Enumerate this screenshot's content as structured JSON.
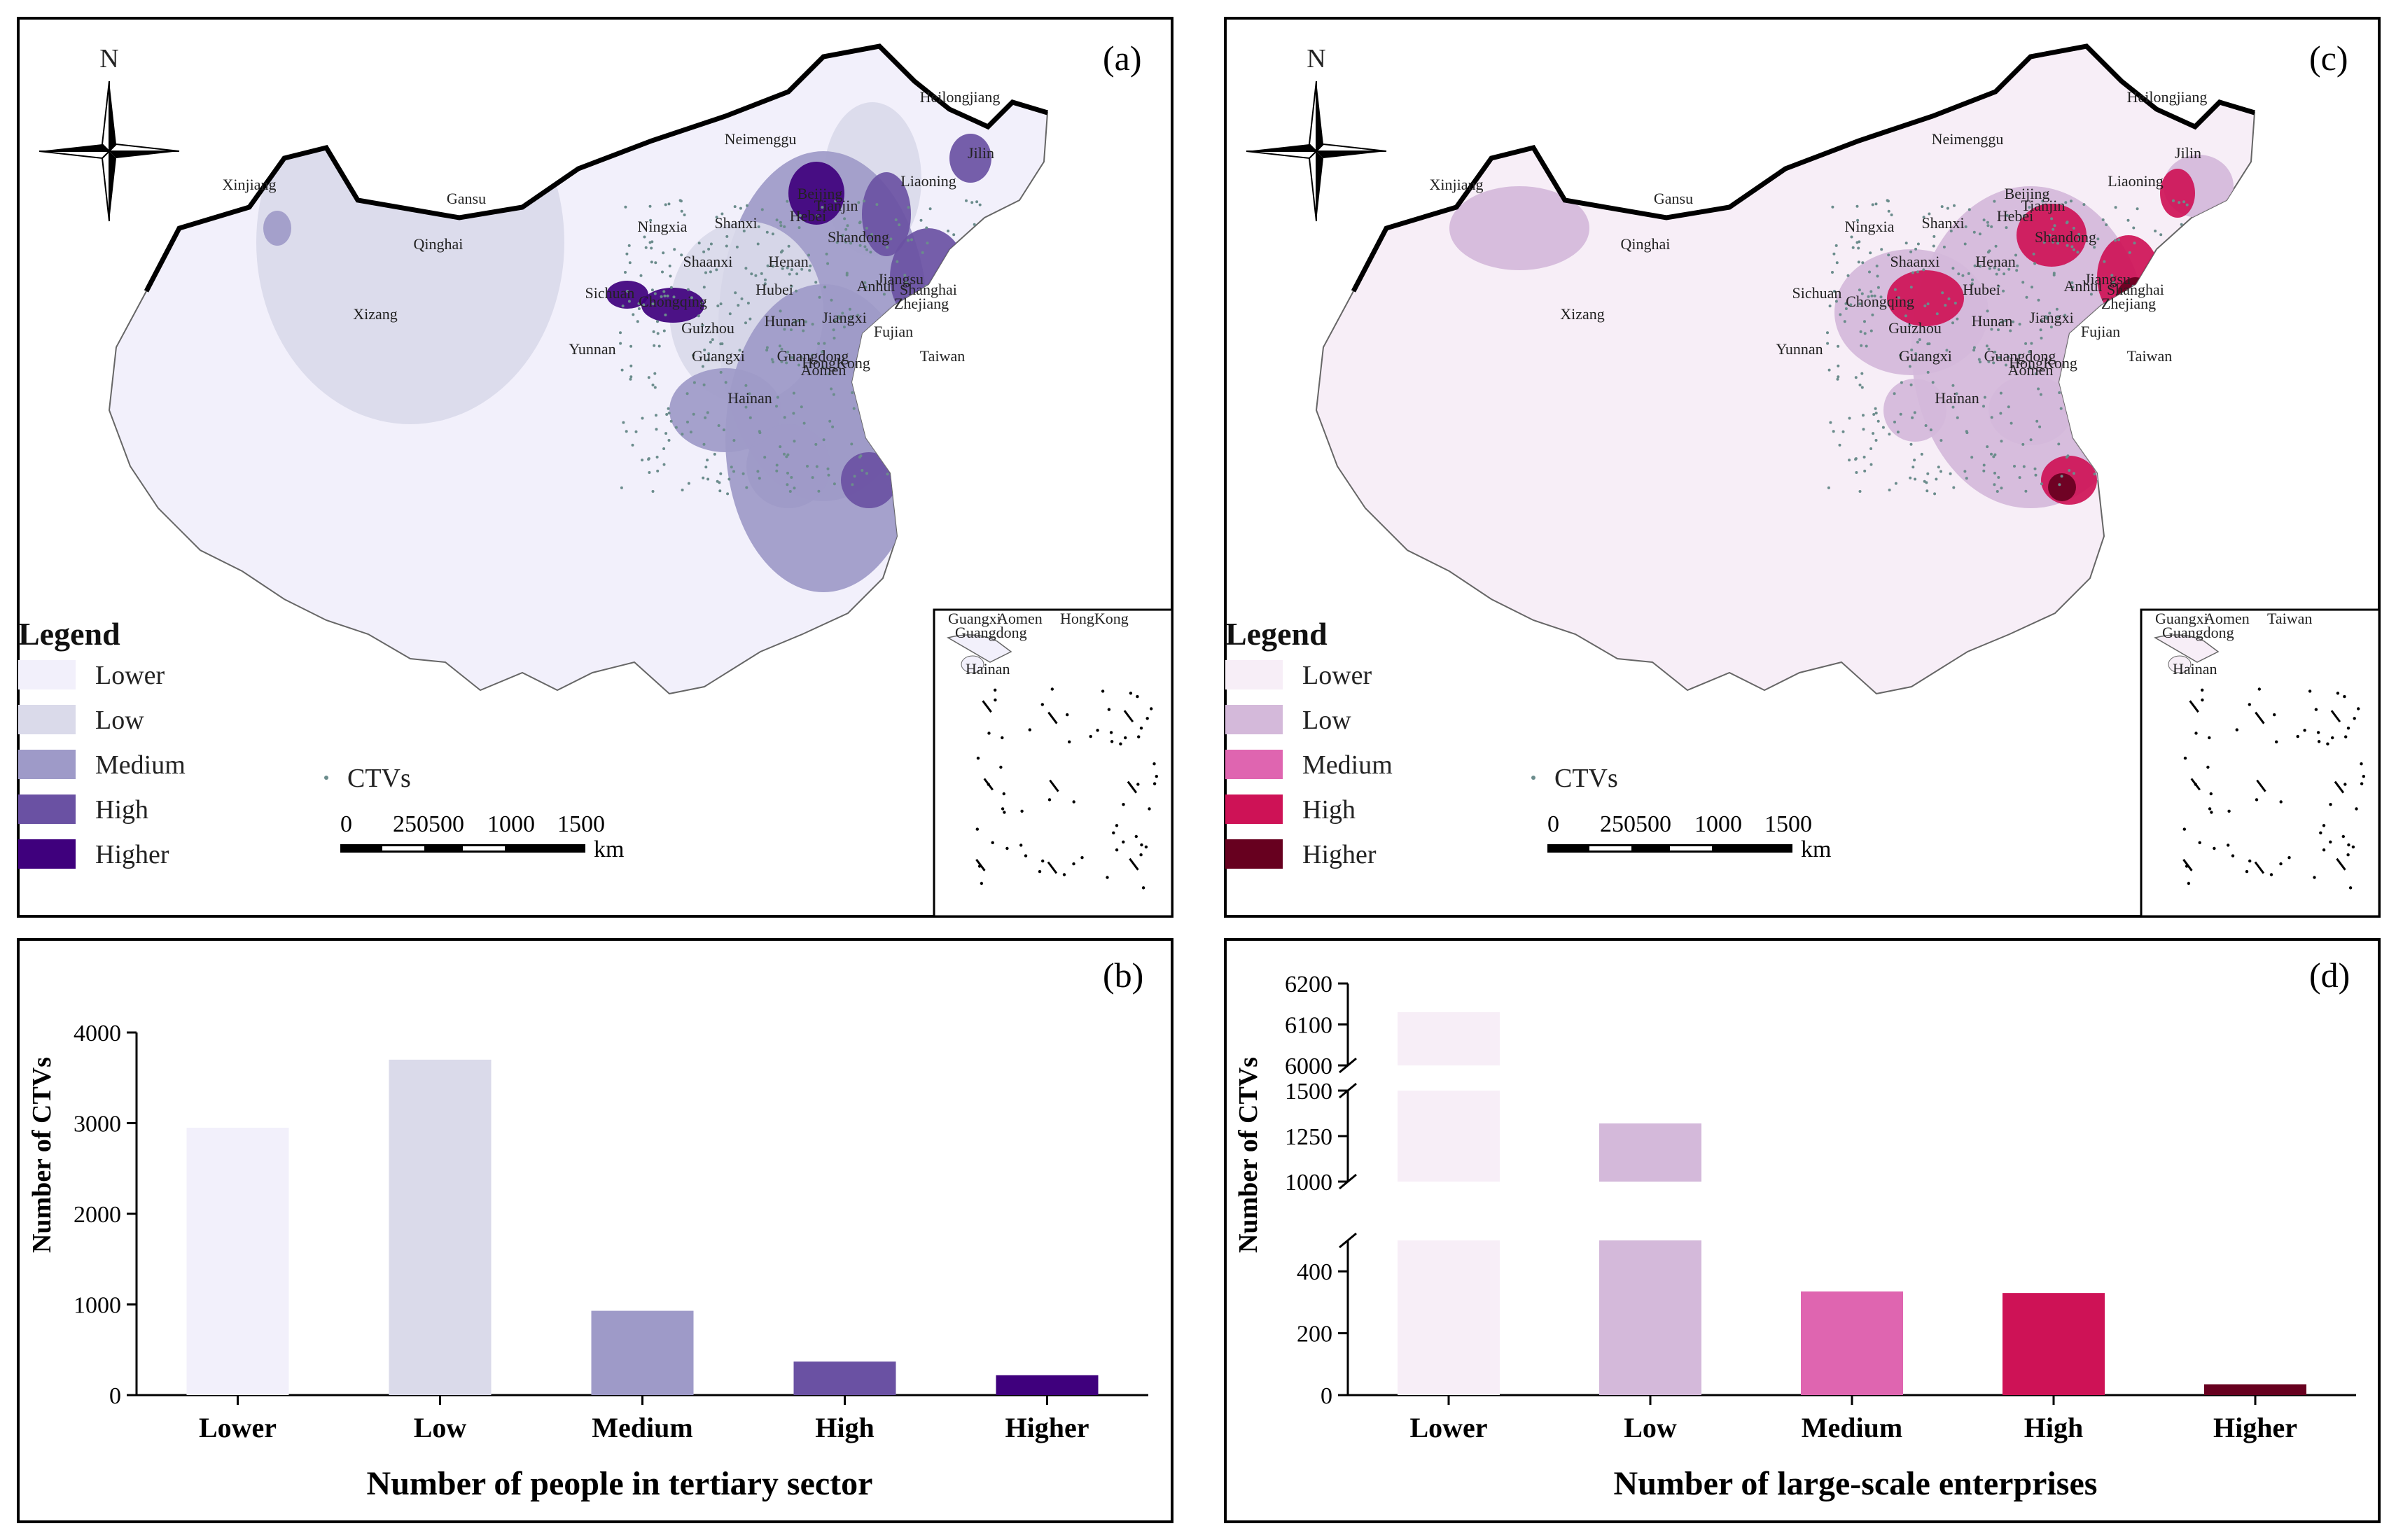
{
  "panels": {
    "a": {
      "tag": "(a)",
      "north": "N",
      "legend_title": "Legend",
      "legend": [
        {
          "label": "Lower",
          "color": "#f2f0fb"
        },
        {
          "label": "Low",
          "color": "#dadaea"
        },
        {
          "label": "Medium",
          "color": "#9e9ac8"
        },
        {
          "label": "High",
          "color": "#6a51a3"
        },
        {
          "label": "Higher",
          "color": "#3f007d"
        }
      ],
      "point_label": "CTVs",
      "scale_ticks": [
        "0",
        "250500",
        "1000",
        "1500"
      ],
      "scale_unit": "km",
      "provinces": [
        "Heilongjiang",
        "Jilin",
        "Liaoning",
        "Neimenggu",
        "Xinjiang",
        "Gansu",
        "Qinghai",
        "Xizang",
        "Beijing",
        "Tianjin",
        "Hebei",
        "Shanxi",
        "Ningxia",
        "Shandong",
        "Shaanxi",
        "Henan",
        "Jiangsu",
        "Shanghai",
        "Anhui",
        "Hubei",
        "Sichuan",
        "Chongqing",
        "Zhejiang",
        "Jiangxi",
        "Hunan",
        "Guizhou",
        "Fujian",
        "Yunnan",
        "Guangxi",
        "Guangdong",
        "Taiwan",
        "HongKong",
        "Aomen",
        "Hainan"
      ],
      "inset_labels": [
        "Guangxi",
        "Aomen",
        "HongKong",
        "Guangdong",
        "Hainan"
      ]
    },
    "c": {
      "tag": "(c)",
      "north": "N",
      "legend_title": "Legend",
      "legend": [
        {
          "label": "Lower",
          "color": "#f7eef7"
        },
        {
          "label": "Low",
          "color": "#d4b9da"
        },
        {
          "label": "Medium",
          "color": "#df65b0"
        },
        {
          "label": "High",
          "color": "#ce1256"
        },
        {
          "label": "Higher",
          "color": "#67001f"
        }
      ],
      "point_label": "CTVs",
      "scale_ticks": [
        "0",
        "250500",
        "1000",
        "1500"
      ],
      "scale_unit": "km",
      "provinces": [
        "Heilongjiang",
        "Jilin",
        "Liaoning",
        "Neimenggu",
        "Xinjiang",
        "Gansu",
        "Qinghai",
        "Xizang",
        "Beijing",
        "Tianjin",
        "Hebei",
        "Shanxi",
        "Ningxia",
        "Shandong",
        "Shaanxi",
        "Henan",
        "Jiangsu",
        "Shanghai",
        "Anhui",
        "Hubei",
        "Sichuan",
        "Chongqing",
        "Zhejiang",
        "Jiangxi",
        "Hunan",
        "Guizhou",
        "Fujian",
        "Yunnan",
        "Guangxi",
        "Guangdong",
        "Taiwan",
        "HongKong",
        "Aomen",
        "Hainan"
      ],
      "inset_labels": [
        "Guangxi",
        "Aomen",
        "Taiwan",
        "Guangdong",
        "Hainan"
      ]
    }
  },
  "chart_data": [
    {
      "panel": "b",
      "tag": "(b)",
      "type": "bar",
      "categories": [
        "Lower",
        "Low",
        "Medium",
        "High",
        "Higher"
      ],
      "values": [
        2950,
        3700,
        930,
        370,
        220
      ],
      "colors": [
        "#f2f0fb",
        "#dadaea",
        "#9e9ac8",
        "#6a51a3",
        "#3f007d"
      ],
      "xlabel": "Number of people in tertiary sector",
      "ylabel": "Number of CTVs",
      "ylim": [
        0,
        4000
      ],
      "yticks": [
        0,
        1000,
        2000,
        3000,
        4000
      ],
      "yticklabels": [
        "0",
        "1000",
        "2000",
        "3000",
        "4000"
      ]
    },
    {
      "panel": "d",
      "tag": "(d)",
      "type": "bar",
      "categories": [
        "Lower",
        "Low",
        "Medium",
        "High",
        "Higher"
      ],
      "values": [
        6130,
        1320,
        335,
        330,
        35
      ],
      "colors": [
        "#f7eef7",
        "#d4b9da",
        "#df65b0",
        "#ce1256",
        "#67001f"
      ],
      "xlabel": "Number of large-scale enterprises",
      "ylabel": "Number of CTVs",
      "broken_axis": true,
      "segments": [
        {
          "range": [
            0,
            500
          ],
          "ticks": [
            0,
            200,
            400
          ],
          "ticklabels": [
            "0",
            "200",
            "400"
          ]
        },
        {
          "range": [
            1000,
            1500
          ],
          "ticks": [
            1000,
            1250,
            1500
          ],
          "ticklabels": [
            "1000",
            "1250",
            "1500"
          ]
        },
        {
          "range": [
            6000,
            6200
          ],
          "ticks": [
            6000,
            6100,
            6200
          ],
          "ticklabels": [
            "6000",
            "6100",
            "6200"
          ]
        }
      ]
    }
  ]
}
